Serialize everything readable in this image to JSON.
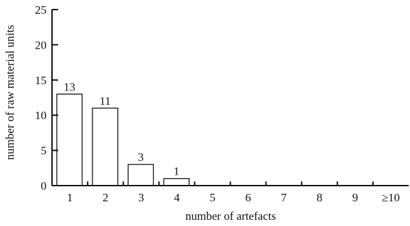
{
  "chart_data": {
    "type": "bar",
    "title": "",
    "xlabel": "number of artefacts",
    "ylabel": "number of raw material units",
    "categories": [
      "1",
      "2",
      "3",
      "4",
      "5",
      "6",
      "7",
      "8",
      "9",
      "≥10"
    ],
    "values": [
      13,
      11,
      3,
      1,
      0,
      0,
      0,
      0,
      0,
      0
    ],
    "data_labels": [
      "13",
      "11",
      "3",
      "1",
      "",
      "",
      "",
      "",
      "",
      ""
    ],
    "ylim": [
      0,
      25
    ],
    "yticks": [
      0,
      5,
      10,
      15,
      20,
      25
    ],
    "ytick_labels": [
      "0",
      "5",
      "10",
      "15",
      "20",
      "25"
    ],
    "grid": false,
    "legend": "none",
    "colors": {
      "bar_fill": "#ffffff",
      "bar_stroke": "#111111",
      "axis": "#111111"
    }
  }
}
